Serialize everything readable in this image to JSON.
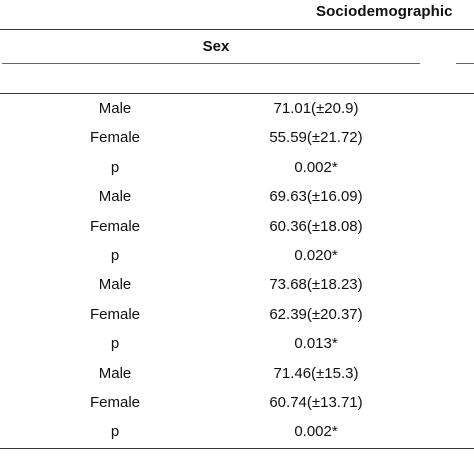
{
  "table": {
    "title": "Sociodemographic",
    "column_header": "Sex",
    "rows": [
      {
        "label": "Male",
        "value": "71.01(±20.9)"
      },
      {
        "label": "Female",
        "value": "55.59(±21.72)"
      },
      {
        "label": "p",
        "value": "0.002*"
      },
      {
        "label": "Male",
        "value": "69.63(±16.09)"
      },
      {
        "label": "Female",
        "value": "60.36(±18.08)"
      },
      {
        "label": "p",
        "value": "0.020*"
      },
      {
        "label": "Male",
        "value": "73.68(±18.23)"
      },
      {
        "label": "Female",
        "value": "62.39(±20.37)"
      },
      {
        "label": "p",
        "value": "0.013*"
      },
      {
        "label": "Male",
        "value": "71.46(±15.3)"
      },
      {
        "label": "Female",
        "value": "60.74(±13.71)"
      },
      {
        "label": "p",
        "value": "0.002*"
      }
    ]
  }
}
